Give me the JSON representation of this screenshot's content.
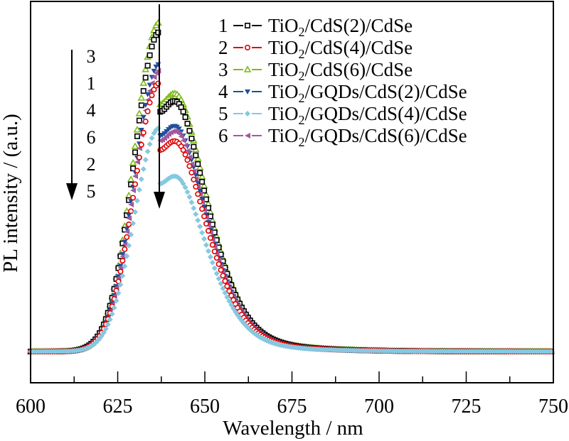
{
  "chart_data": {
    "type": "scatter",
    "title": "",
    "xlabel": "Wavelength / nm",
    "ylabel": "PL intensity / (a.u.)",
    "xlim": [
      600,
      750
    ],
    "ylim": [
      0,
      1.1
    ],
    "x_ticks": [
      "600",
      "625",
      "650",
      "675",
      "700",
      "725",
      "750"
    ],
    "grid": false,
    "legend_position": "top-right",
    "peak_wavelength": 637,
    "annotation_order_label": [
      "3",
      "1",
      "4",
      "6",
      "2",
      "5"
    ],
    "series": [
      {
        "id": "1",
        "name": "TiO2/CdS(2)/CdSe",
        "name_main": "TiO",
        "name_sub": "2",
        "name_rest": "/CdS(2)/CdSe",
        "color": "#000000",
        "marker": "square-open",
        "peak": 1.0
      },
      {
        "id": "2",
        "name": "TiO2/CdS(4)/CdSe",
        "name_main": "TiO",
        "name_sub": "2",
        "name_rest": "/CdS(4)/CdSe",
        "color": "#e00000",
        "marker": "circle-open",
        "peak": 0.84
      },
      {
        "id": "3",
        "name": "TiO2/CdS(6)/CdSe",
        "name_main": "TiO",
        "name_sub": "2",
        "name_rest": "/CdS(6)/CdSe",
        "color": "#7dbb1a",
        "marker": "triangle-up-open",
        "peak": 1.03
      },
      {
        "id": "4",
        "name": "TiO2/GQDs/CdS(2)/CdSe",
        "name_main": "TiO",
        "name_sub": "2",
        "name_rest": "/GQDs/CdS(2)/CdSe",
        "color": "#1f4e9c",
        "marker": "triangle-down",
        "peak": 0.9
      },
      {
        "id": "5",
        "name": "TiO2/GQDs/CdS(4)/CdSe",
        "name_main": "TiO",
        "name_sub": "2",
        "name_rest": "/GQDs/CdS(4)/CdSe",
        "color": "#86c8e0",
        "marker": "diamond",
        "peak": 0.7
      },
      {
        "id": "6",
        "name": "TiO2/GQDs/CdS(6)/CdSe",
        "name_main": "TiO",
        "name_sub": "2",
        "name_rest": "/GQDs/CdS(6)/CdSe",
        "color": "#a05a9c",
        "marker": "triangle-left",
        "peak": 0.88
      }
    ],
    "baseline": 0.0
  }
}
